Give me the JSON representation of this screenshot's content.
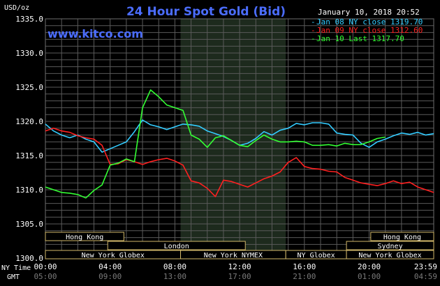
{
  "chart_data": {
    "type": "line",
    "title": "24 Hour Spot Gold (Bid)",
    "watermark": "www.kitco.com",
    "timestamp": "January 10, 2018 20:52",
    "y_unit_label": "USD/oz",
    "ylim": [
      1300,
      1335
    ],
    "y_ticks": [
      "1335.0",
      "1330.0",
      "1325.0",
      "1320.0",
      "1315.0",
      "1310.0",
      "1305.0",
      "1300.0"
    ],
    "x_ticks_ny": [
      "00:00",
      "04:00",
      "08:00",
      "12:00",
      "16:00",
      "20:00",
      "23:59"
    ],
    "x_ticks_gmt": [
      "05:00",
      "09:00",
      "13:00",
      "17:00",
      "21:00",
      "01:00",
      "04:59"
    ],
    "x_axis_label_ny": "NY Time",
    "x_axis_label_gmt": "GMT",
    "background_color": "#000000",
    "grid_color": "#5a5a5a",
    "shaded_session_color": "#1d2a1d",
    "legend": [
      {
        "label": "Jan 08 NY close 1319.70",
        "color": "#33ccff"
      },
      {
        "label": "Jan 09 NY close 1312.60",
        "color": "#ff2020"
      },
      {
        "label": "Jan 10 Last 1317.70",
        "color": "#33ff33"
      }
    ],
    "sessions": [
      {
        "label": "Hong Kong",
        "start": 0.0,
        "end": 4.85,
        "row": 0
      },
      {
        "label": "London",
        "start": 3.85,
        "end": 12.35,
        "row": 1
      },
      {
        "label": "New York Globex",
        "start": 0.0,
        "end": 8.35,
        "row": 2
      },
      {
        "label": "New York NYMEX",
        "start": 8.35,
        "end": 14.85,
        "row": 2
      },
      {
        "label": "NY Globex",
        "start": 14.85,
        "end": 18.6,
        "row": 2
      },
      {
        "label": "Hong Kong",
        "start": 20.1,
        "end": 23.99,
        "row": 0
      },
      {
        "label": "Sydney",
        "start": 18.6,
        "end": 23.99,
        "row": 1
      },
      {
        "label": "New York Globex",
        "start": 18.6,
        "end": 23.99,
        "row": 2
      }
    ],
    "shaded_region": [
      8.35,
      14.85
    ],
    "series": [
      {
        "name": "Jan 08 NY close 1319.70",
        "color": "#33ccff",
        "x": [
          0,
          0.5,
          1,
          1.5,
          2,
          2.5,
          3,
          3.5,
          4,
          4.5,
          5,
          5.5,
          6,
          6.5,
          7,
          7.5,
          8,
          8.5,
          9,
          9.5,
          10,
          10.5,
          11,
          11.5,
          12,
          12.5,
          13,
          13.5,
          14,
          14.5,
          15,
          15.5,
          16,
          16.5,
          17,
          17.5,
          18,
          18.5,
          19,
          19.5,
          20,
          20.5,
          21,
          21.5,
          22,
          22.5,
          23,
          23.5,
          23.99
        ],
        "y": [
          1319.6,
          1318.6,
          1318.0,
          1317.6,
          1318.0,
          1317.4,
          1317.0,
          1315.5,
          1316.0,
          1316.5,
          1317.0,
          1318.5,
          1320.2,
          1319.5,
          1319.2,
          1318.8,
          1319.2,
          1319.6,
          1319.5,
          1319.3,
          1318.6,
          1318.2,
          1317.8,
          1317.2,
          1316.5,
          1316.8,
          1317.5,
          1318.5,
          1318.0,
          1318.7,
          1319.0,
          1319.7,
          1319.5,
          1319.8,
          1319.8,
          1319.6,
          1318.3,
          1318.1,
          1318.0,
          1316.8,
          1316.2,
          1317.0,
          1317.4,
          1317.9,
          1318.3,
          1318.1,
          1318.4,
          1318.0,
          1318.2
        ]
      },
      {
        "name": "Jan 09 NY close 1312.60",
        "color": "#ff2020",
        "x": [
          0,
          0.5,
          1,
          1.5,
          2,
          2.5,
          3,
          3.5,
          4,
          4.5,
          5,
          5.5,
          6,
          6.5,
          7,
          7.5,
          8,
          8.5,
          9,
          9.5,
          10,
          10.5,
          11,
          11.5,
          12,
          12.5,
          13,
          13.5,
          14,
          14.5,
          15,
          15.5,
          16,
          16.5,
          17,
          17.5,
          18,
          18.5,
          19,
          19.5,
          20,
          20.5,
          21,
          21.5,
          22,
          22.5,
          23,
          23.5,
          23.99
        ],
        "y": [
          1318.6,
          1319.0,
          1318.6,
          1318.4,
          1317.9,
          1317.6,
          1317.4,
          1316.5,
          1313.7,
          1313.8,
          1314.4,
          1314.1,
          1313.7,
          1314.1,
          1314.4,
          1314.6,
          1314.2,
          1313.6,
          1311.3,
          1311.0,
          1310.2,
          1309.0,
          1311.4,
          1311.2,
          1310.8,
          1310.4,
          1311.0,
          1311.6,
          1312.0,
          1312.6,
          1314.0,
          1314.7,
          1313.4,
          1313.1,
          1313.0,
          1312.7,
          1312.6,
          1311.8,
          1311.4,
          1311.0,
          1310.8,
          1310.6,
          1310.9,
          1311.3,
          1310.9,
          1311.1,
          1310.4,
          1310.0,
          1309.6
        ]
      },
      {
        "name": "Jan 10 Last 1317.70",
        "color": "#33ff33",
        "x": [
          0,
          0.5,
          1,
          1.5,
          2,
          2.5,
          3,
          3.5,
          4,
          4.5,
          5,
          5.5,
          6,
          6.5,
          7,
          7.5,
          8,
          8.5,
          9,
          9.5,
          10,
          10.5,
          11,
          11.5,
          12,
          12.5,
          13,
          13.5,
          14,
          14.5,
          15,
          15.5,
          16,
          16.5,
          17,
          17.5,
          18,
          18.5,
          19,
          19.5,
          20,
          20.5,
          21
        ],
        "y": [
          1310.4,
          1310.0,
          1309.6,
          1309.5,
          1309.3,
          1308.8,
          1309.9,
          1310.7,
          1313.6,
          1313.9,
          1314.5,
          1314.1,
          1322.0,
          1324.6,
          1323.6,
          1322.4,
          1322.0,
          1321.6,
          1318.0,
          1317.4,
          1316.2,
          1317.6,
          1317.9,
          1317.2,
          1316.5,
          1316.3,
          1317.2,
          1318.0,
          1317.4,
          1317.0,
          1317.0,
          1317.1,
          1317.0,
          1316.5,
          1316.5,
          1316.6,
          1316.4,
          1316.8,
          1316.6,
          1316.6,
          1317.0,
          1317.5,
          1317.7
        ]
      }
    ]
  }
}
